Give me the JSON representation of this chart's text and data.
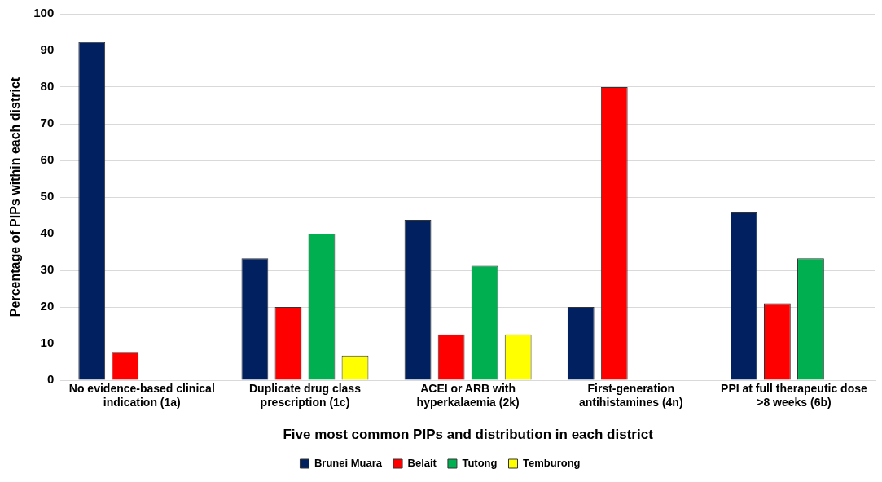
{
  "chart_data": {
    "type": "bar",
    "xlabel": "Five most common PIPs and distribution in each district",
    "ylabel": "Percentage of PIPs within each district",
    "categories": [
      "No evidence-based clinical indication (1a)",
      "Duplicate drug class prescription (1c)",
      "ACEI or ARB with hyperkalaemia (2k)",
      "First-generation antihistamines (4n)",
      "PPI at full therapeutic dose >8 weeks (6b)"
    ],
    "series": [
      {
        "name": "Brunei Muara",
        "color": "#002060",
        "values": [
          92.3,
          33.3,
          43.8,
          20,
          46
        ]
      },
      {
        "name": "Belait",
        "color": "#ff0000",
        "values": [
          7.7,
          20,
          12.5,
          80,
          21
        ]
      },
      {
        "name": "Tutong",
        "color": "#00b050",
        "values": [
          null,
          40,
          31.2,
          null,
          33.3
        ]
      },
      {
        "name": "Temburong",
        "color": "#ffff00",
        "values": [
          null,
          6.7,
          12.5,
          null,
          null
        ]
      }
    ],
    "ylim": [
      0,
      100
    ],
    "yticks": [
      0,
      10,
      20,
      30,
      40,
      50,
      60,
      70,
      80,
      90,
      100
    ],
    "grid": "y",
    "legend": "bottom"
  }
}
